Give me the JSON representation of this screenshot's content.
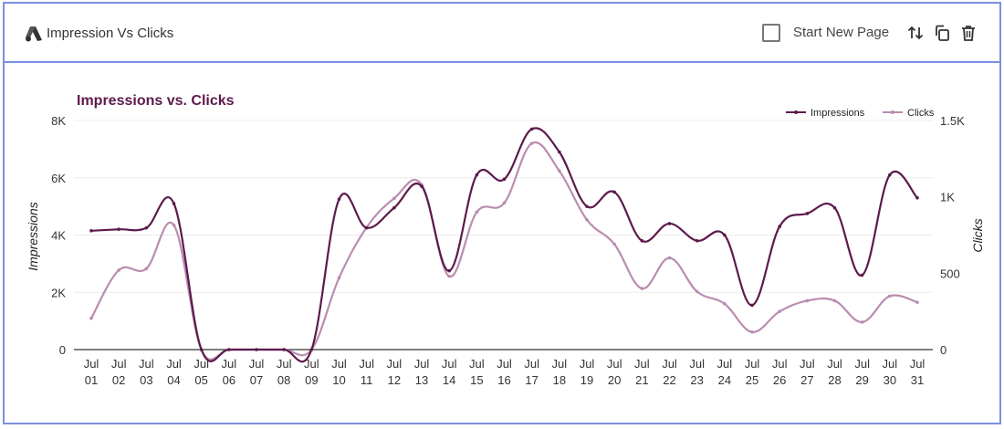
{
  "header": {
    "title": "Impression Vs Clicks",
    "logo_icon": "google-ads-logo",
    "start_new_page_label": "Start New Page",
    "start_new_page_checked": false,
    "icons": [
      "sort-icon",
      "copy-icon",
      "trash-icon"
    ]
  },
  "chart_data": {
    "type": "line",
    "title": "Impressions vs. Clicks",
    "title_color": "#5c1a4c",
    "categories": [
      "Jul 01",
      "Jul 02",
      "Jul 03",
      "Jul 04",
      "Jul 05",
      "Jul 06",
      "Jul 07",
      "Jul 08",
      "Jul 09",
      "Jul 10",
      "Jul 11",
      "Jul 12",
      "Jul 13",
      "Jul 14",
      "Jul 15",
      "Jul 16",
      "Jul 17",
      "Jul 18",
      "Jul 19",
      "Jul 20",
      "Jul 21",
      "Jul 22",
      "Jul 23",
      "Jul 24",
      "Jul 25",
      "Jul 26",
      "Jul 27",
      "Jul 28",
      "Jul 29",
      "Jul 30",
      "Jul 31"
    ],
    "series": [
      {
        "name": "Impressions",
        "axis": "left",
        "color": "#5c1a4c",
        "values": [
          4150,
          4200,
          4250,
          5100,
          0,
          0,
          0,
          0,
          0,
          5250,
          4250,
          4950,
          5700,
          2750,
          6100,
          5950,
          7700,
          6900,
          5000,
          5500,
          3800,
          4400,
          3800,
          4000,
          1550,
          4300,
          4750,
          4950,
          2600,
          6100,
          5300
        ]
      },
      {
        "name": "Clicks",
        "axis": "right",
        "color": "#b98db0",
        "values": [
          205,
          520,
          530,
          815,
          0,
          0,
          0,
          0,
          0,
          470,
          800,
          990,
          1080,
          480,
          900,
          960,
          1350,
          1170,
          850,
          690,
          400,
          600,
          380,
          300,
          115,
          250,
          320,
          320,
          180,
          350,
          310
        ]
      }
    ],
    "ylabel": "Impressions",
    "y2label": "Clicks",
    "ylim": [
      0,
      8000
    ],
    "y2lim": [
      0,
      1500
    ],
    "yticks": [
      "0",
      "2K",
      "4K",
      "6K",
      "8K"
    ],
    "y2ticks": [
      "0",
      "500",
      "1K",
      "1.5K"
    ],
    "grid": true,
    "legend_placement": "top-right"
  }
}
